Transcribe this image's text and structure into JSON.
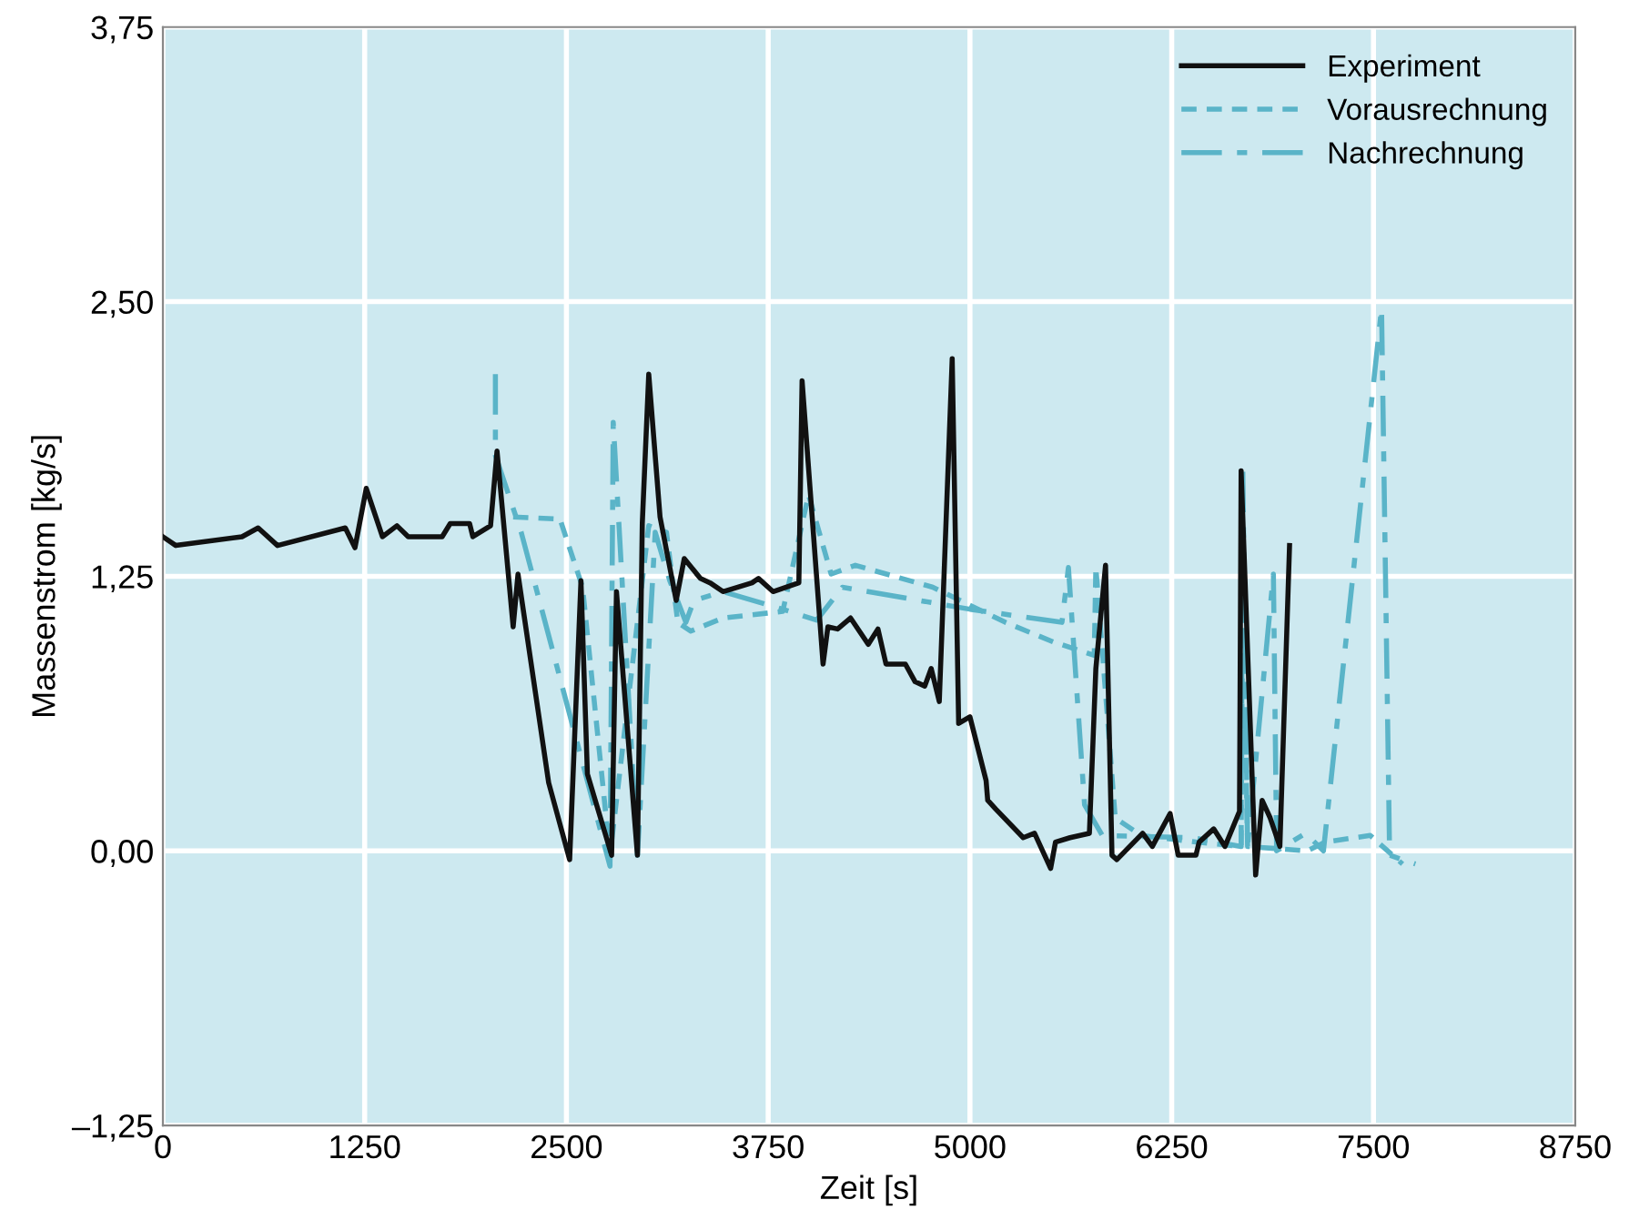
{
  "chart_data": {
    "type": "line",
    "xlabel": "Zeit [s]",
    "ylabel": "Massenstrom [kg/s]",
    "xlim": [
      0,
      8750
    ],
    "xticks": [
      0,
      1250,
      2500,
      3750,
      5000,
      6250,
      7500,
      8750
    ],
    "ylim": [
      -1.25,
      3.75
    ],
    "yticks": [
      {
        "value": -1.25,
        "label": "–1,25"
      },
      {
        "value": 0,
        "label": "0,00"
      },
      {
        "value": 1.25,
        "label": "1,25"
      },
      {
        "value": 2.5,
        "label": "2,50"
      },
      {
        "value": 3.75,
        "label": "3,75"
      }
    ],
    "grid": true,
    "legend": "top right",
    "marker": "none",
    "series": [
      {
        "name": "Experiment",
        "color": "#111111",
        "line_style": "solid",
        "x": [
          0,
          80,
          490,
          590,
          710,
          1130,
          1190,
          1260,
          1360,
          1450,
          1520,
          1730,
          1780,
          1900,
          1920,
          2030,
          2070,
          2170,
          2200,
          2390,
          2520,
          2590,
          2630,
          2780,
          2810,
          2940,
          2970,
          3010,
          3080,
          3180,
          3230,
          3330,
          3390,
          3470,
          3650,
          3690,
          3780,
          3940,
          3960,
          4090,
          4120,
          4180,
          4260,
          4370,
          4430,
          4480,
          4600,
          4660,
          4720,
          4760,
          4810,
          4890,
          4930,
          5000,
          5100,
          5110,
          5160,
          5330,
          5400,
          5500,
          5530,
          5620,
          5740,
          5780,
          5840,
          5880,
          5910,
          6070,
          6130,
          6240,
          6290,
          6400,
          6420,
          6510,
          6580,
          6670,
          6680,
          6770,
          6810,
          6860,
          6920,
          6980
        ],
        "values": [
          1.43,
          1.39,
          1.43,
          1.47,
          1.39,
          1.47,
          1.38,
          1.65,
          1.43,
          1.48,
          1.43,
          1.43,
          1.49,
          1.49,
          1.43,
          1.48,
          1.82,
          1.02,
          1.26,
          0.31,
          -0.04,
          1.23,
          0.35,
          -0.02,
          1.18,
          -0.02,
          1.49,
          2.17,
          1.52,
          1.14,
          1.33,
          1.24,
          1.22,
          1.18,
          1.22,
          1.24,
          1.18,
          1.22,
          2.14,
          0.85,
          1.02,
          1.01,
          1.06,
          0.94,
          1.01,
          0.85,
          0.85,
          0.77,
          0.75,
          0.83,
          0.68,
          2.24,
          0.58,
          0.61,
          0.32,
          0.23,
          0.19,
          0.06,
          0.08,
          -0.08,
          0.04,
          0.06,
          0.08,
          0.83,
          1.3,
          -0.02,
          -0.04,
          0.08,
          0.02,
          0.17,
          -0.02,
          -0.02,
          0.04,
          0.1,
          0.02,
          0.18,
          1.73,
          -0.11,
          0.23,
          0.15,
          0.02,
          1.39
        ]
      },
      {
        "name": "Vorausrechnung",
        "color": "#5ab4c8",
        "line_style": "dotted",
        "x": [
          2170,
          2460,
          2600,
          2770,
          3010,
          3120,
          3190,
          3270,
          3470,
          3840,
          4000,
          4140,
          4290,
          4770,
          5220,
          5520,
          5770,
          5780,
          5900,
          6060,
          6400,
          6680,
          6690,
          6720,
          7090,
          7200,
          7480,
          7680
        ],
        "values": [
          1.52,
          1.51,
          1.2,
          -0.02,
          1.48,
          1.45,
          1.04,
          1.0,
          1.06,
          1.09,
          1.62,
          1.26,
          1.3,
          1.2,
          1.04,
          0.95,
          0.89,
          1.29,
          0.15,
          0.07,
          0.04,
          0.02,
          1.26,
          0.02,
          0.0,
          0.04,
          0.07,
          -0.06
        ]
      },
      {
        "name": "Nachrechnung",
        "color": "#5ab4c8",
        "line_style": "dashed",
        "x": [
          2060,
          2060,
          2220,
          2770,
          2790,
          2940,
          3050,
          3140,
          3240,
          3290,
          3470,
          3840,
          4050,
          4210,
          5000,
          5570,
          5610,
          5710,
          5820,
          6380,
          6680,
          6690,
          6720,
          6880,
          6900,
          7080,
          7190,
          7550,
          7600,
          7760
        ],
        "values": [
          2.17,
          1.8,
          1.45,
          -0.07,
          1.95,
          -0.02,
          1.45,
          1.23,
          1.04,
          1.14,
          1.18,
          1.1,
          1.05,
          1.2,
          1.1,
          1.04,
          1.29,
          0.21,
          0.07,
          0.06,
          0.02,
          1.75,
          0.02,
          1.26,
          0.0,
          0.08,
          0.0,
          2.47,
          -0.02,
          -0.06
        ]
      }
    ]
  }
}
